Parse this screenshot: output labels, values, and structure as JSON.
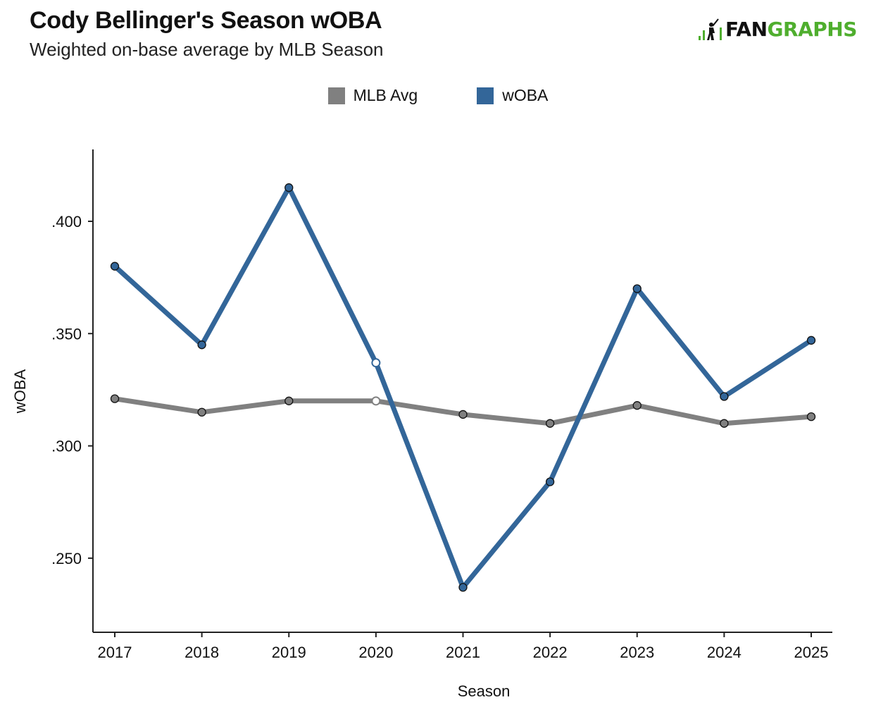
{
  "header": {
    "title": "Cody Bellinger's Season wOBA",
    "subtitle": "Weighted on-base average by MLB Season",
    "logo": {
      "icon": "batter-icon",
      "text_fan": "FAN",
      "text_graphs": "GRAPHS"
    }
  },
  "colors": {
    "woba": "#336699",
    "mlb_avg": "#808080",
    "axis": "#222222",
    "logo_green": "#4fae2e"
  },
  "chart_data": {
    "type": "line",
    "title": "Cody Bellinger's Season wOBA",
    "subtitle": "Weighted on-base average by MLB Season",
    "xlabel": "Season",
    "ylabel": "wOBA",
    "categories": [
      "2017",
      "2018",
      "2019",
      "2020",
      "2021",
      "2022",
      "2023",
      "2024",
      "2025"
    ],
    "ylim": [
      0.217,
      0.432
    ],
    "yticks": [
      0.25,
      0.3,
      0.35,
      0.4
    ],
    "ytick_labels": [
      ".250",
      ".300",
      ".350",
      ".400"
    ],
    "grid": false,
    "legend_position": "top-center",
    "highlighted_category": "2020",
    "series": [
      {
        "name": "MLB Avg",
        "values": [
          0.321,
          0.315,
          0.32,
          0.32,
          0.314,
          0.31,
          0.318,
          0.31,
          0.313
        ]
      },
      {
        "name": "wOBA",
        "values": [
          0.38,
          0.345,
          0.415,
          0.337,
          0.237,
          0.284,
          0.37,
          0.322,
          0.347
        ]
      }
    ]
  }
}
